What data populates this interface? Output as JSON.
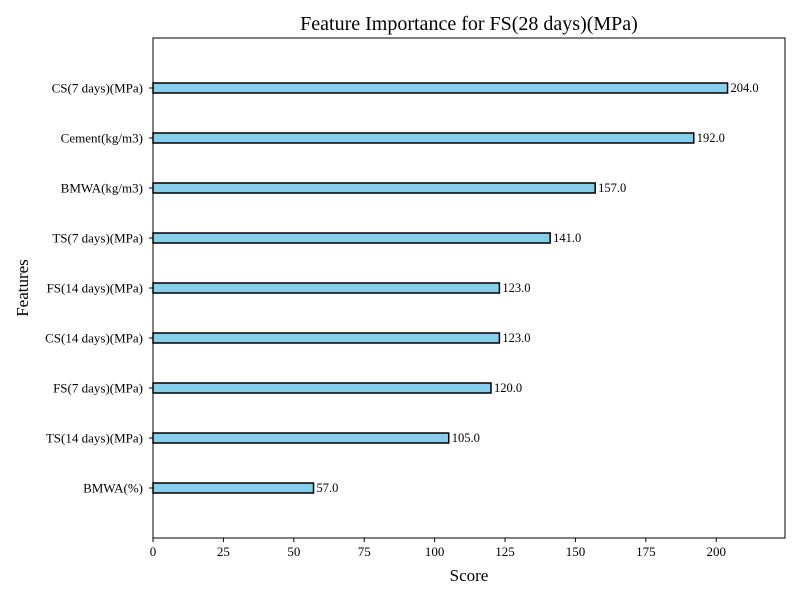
{
  "chart_data": {
    "type": "bar",
    "orientation": "horizontal",
    "title": "Feature Importance for FS(28 days)(MPa)",
    "xlabel": "Score",
    "ylabel": "Features",
    "categories": [
      "CS(7 days)(MPa)",
      "Cement(kg/m3)",
      "BMWA(kg/m3)",
      "TS(7 days)(MPa)",
      "FS(14 days)(MPa)",
      "CS(14 days)(MPa)",
      "FS(7 days)(MPa)",
      "TS(14 days)(MPa)",
      "BMWA(%)"
    ],
    "values": [
      204,
      192,
      157,
      141,
      123,
      123,
      120,
      105,
      57
    ],
    "value_labels": [
      "204.0",
      "192.0",
      "157.0",
      "141.0",
      "123.0",
      "123.0",
      "120.0",
      "105.0",
      "57.0"
    ],
    "xticks": [
      0,
      25,
      50,
      75,
      100,
      125,
      150,
      175,
      200
    ],
    "xlim": [
      0,
      224.4
    ],
    "grid": false,
    "colors": {
      "bar_fill": "#87ceeb",
      "bar_edge": "#000000"
    }
  }
}
